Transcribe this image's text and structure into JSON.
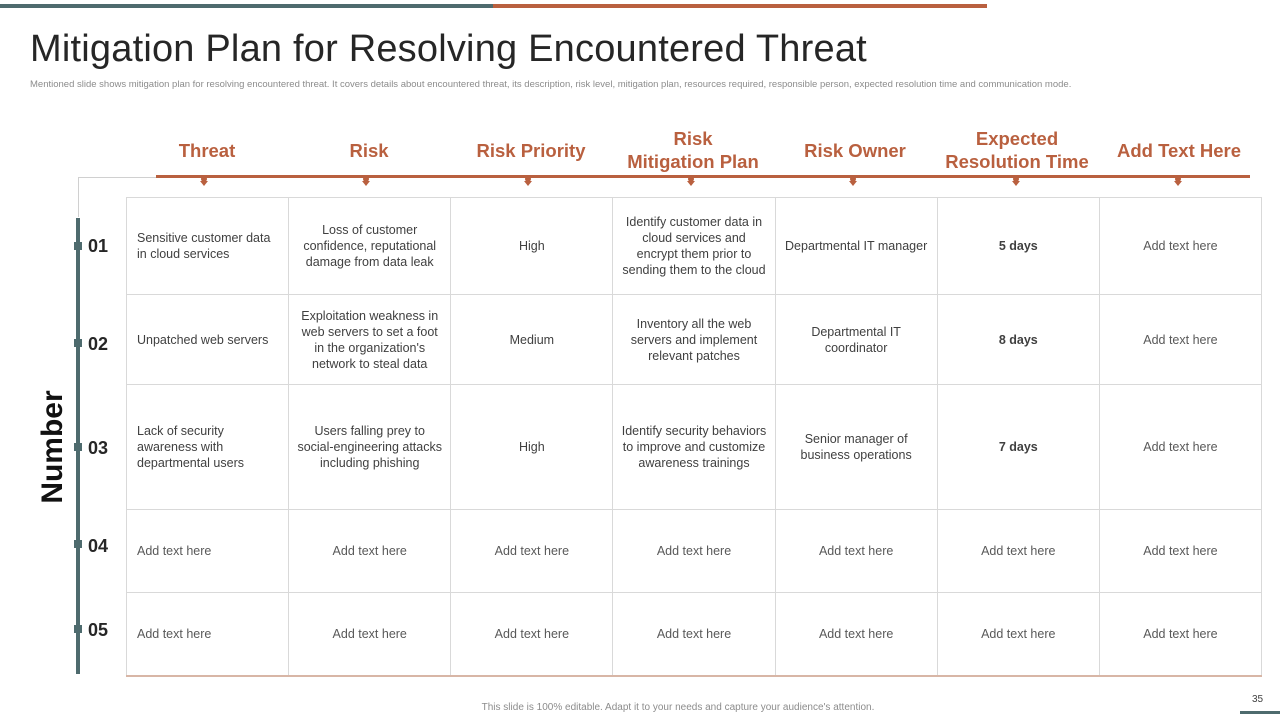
{
  "header": {
    "title": "Mitigation Plan for Resolving Encountered Threat",
    "subtitle": "Mentioned slide shows mitigation plan  for resolving encountered threat. It covers details about encountered threat, its description, risk level, mitigation  plan, resources required, responsible person, expected resolution time and communication mode."
  },
  "columns": [
    "Threat",
    "Risk",
    "Risk Priority",
    "Risk\nMitigation Plan",
    "Risk Owner",
    "Expected\nResolution Time",
    "Add Text Here"
  ],
  "axis_label": "Number",
  "rows": [
    {
      "number": "01",
      "cells": [
        "Sensitive customer data in cloud services",
        "Loss of customer confidence, reputational damage from data leak",
        "High",
        "Identify customer data in cloud services and encrypt them prior to sending them to the cloud",
        "Departmental IT manager",
        "5 days",
        "Add text here"
      ]
    },
    {
      "number": "02",
      "cells": [
        "Unpatched web servers",
        "Exploitation weakness in web servers to set a foot in the organization's network to steal data",
        "Medium",
        "Inventory  all the web servers and implement relevant  patches",
        "Departmental IT coordinator",
        "8 days",
        "Add text here"
      ]
    },
    {
      "number": "03",
      "cells": [
        "Lack of security awareness  with departmental users",
        "Users falling prey to social-engineering attacks including phishing",
        "High",
        "Identify security behaviors  to improve and customize awareness trainings",
        "Senior manager of business operations",
        "7 days",
        "Add text here"
      ]
    },
    {
      "number": "04",
      "cells": [
        "Add text here",
        "Add text here",
        "Add text here",
        "Add text here",
        "Add text here",
        "Add text here",
        "Add text here"
      ]
    },
    {
      "number": "05",
      "cells": [
        "Add text here",
        "Add text here",
        "Add text here",
        "Add text here",
        "Add text here",
        "Add text here",
        "Add text here"
      ]
    }
  ],
  "footer": {
    "note": "This slide is 100% editable.  Adapt it to your needs and capture your audience's attention.",
    "page_number": "35"
  },
  "colors": {
    "accent": "#b9603f",
    "teal": "#4e6b6e"
  }
}
